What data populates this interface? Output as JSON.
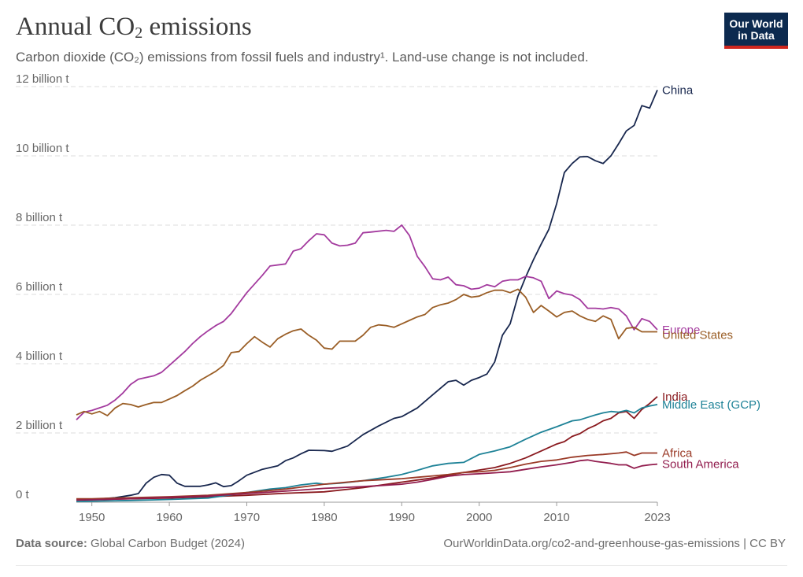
{
  "header": {
    "title_main": "Annual CO",
    "title_sub": "2",
    "title_end": " emissions",
    "subtitle": "Carbon dioxide (CO₂) emissions from fossil fuels and industry¹. Land-use change is not included."
  },
  "logo": {
    "line1": "Our World",
    "line2": "in Data",
    "bg_color": "#0c2a4f",
    "accent_color": "#ce261e"
  },
  "footer": {
    "source_label": "Data source:",
    "source_value": " Global Carbon Budget (2024)",
    "link_text": "OurWorldinData.org/co2-and-greenhouse-gas-emissions | CC BY"
  },
  "chart_data": {
    "type": "line",
    "ylim": [
      0,
      12
    ],
    "xlim": [
      1948,
      2023
    ],
    "y_ticks": [
      {
        "value": 0,
        "label": "0 t"
      },
      {
        "value": 2,
        "label": "2 billion t"
      },
      {
        "value": 4,
        "label": "4 billion t"
      },
      {
        "value": 6,
        "label": "6 billion t"
      },
      {
        "value": 8,
        "label": "8 billion t"
      },
      {
        "value": 10,
        "label": "10 billion t"
      },
      {
        "value": 12,
        "label": "12 billion t"
      }
    ],
    "x_ticks": [
      {
        "value": 1950,
        "label": "1950"
      },
      {
        "value": 1960,
        "label": "1960"
      },
      {
        "value": 1970,
        "label": "1970"
      },
      {
        "value": 1980,
        "label": "1980"
      },
      {
        "value": 1990,
        "label": "1990"
      },
      {
        "value": 2000,
        "label": "2000"
      },
      {
        "value": 2010,
        "label": "2010"
      },
      {
        "value": 2023,
        "label": "2023"
      }
    ],
    "grid": true,
    "series": [
      {
        "name": "China",
        "color": "#18274e",
        "x": [
          1948,
          1950,
          1953,
          1955,
          1956,
          1957,
          1958,
          1959,
          1960,
          1961,
          1962,
          1963,
          1964,
          1965,
          1966,
          1967,
          1968,
          1969,
          1970,
          1972,
          1974,
          1975,
          1976,
          1977,
          1978,
          1980,
          1981,
          1983,
          1985,
          1987,
          1989,
          1990,
          1992,
          1994,
          1996,
          1997,
          1998,
          1999,
          2000,
          2001,
          2002,
          2003,
          2004,
          2005,
          2006,
          2007,
          2008,
          2009,
          2010,
          2011,
          2012,
          2013,
          2014,
          2015,
          2016,
          2017,
          2018,
          2019,
          2020,
          2021,
          2022,
          2023
        ],
        "y": [
          0.06,
          0.08,
          0.13,
          0.2,
          0.25,
          0.55,
          0.72,
          0.8,
          0.78,
          0.55,
          0.46,
          0.46,
          0.46,
          0.5,
          0.56,
          0.45,
          0.48,
          0.62,
          0.78,
          0.95,
          1.05,
          1.2,
          1.28,
          1.4,
          1.5,
          1.49,
          1.47,
          1.62,
          1.95,
          2.2,
          2.42,
          2.47,
          2.72,
          3.1,
          3.48,
          3.52,
          3.38,
          3.52,
          3.6,
          3.7,
          4.05,
          4.82,
          5.15,
          5.95,
          6.5,
          7.0,
          7.45,
          7.88,
          8.62,
          9.52,
          9.78,
          9.97,
          9.98,
          9.86,
          9.78,
          10.0,
          10.35,
          10.72,
          10.88,
          11.45,
          11.38,
          11.9
        ],
        "label_value": 11.9,
        "label_offset": 0
      },
      {
        "name": "Europe",
        "color": "#a33a9e",
        "x": [
          1948,
          1949,
          1950,
          1952,
          1953,
          1954,
          1955,
          1956,
          1958,
          1959,
          1960,
          1961,
          1962,
          1963,
          1964,
          1965,
          1966,
          1967,
          1968,
          1969,
          1970,
          1972,
          1973,
          1975,
          1976,
          1977,
          1978,
          1979,
          1980,
          1981,
          1982,
          1983,
          1984,
          1985,
          1986,
          1988,
          1989,
          1990,
          1991,
          1992,
          1993,
          1994,
          1995,
          1996,
          1997,
          1998,
          1999,
          2000,
          2001,
          2002,
          2003,
          2004,
          2005,
          2006,
          2007,
          2008,
          2009,
          2010,
          2011,
          2012,
          2013,
          2014,
          2015,
          2016,
          2017,
          2018,
          2019,
          2020,
          2021,
          2022,
          2023
        ],
        "y": [
          2.38,
          2.6,
          2.65,
          2.8,
          2.95,
          3.15,
          3.4,
          3.55,
          3.65,
          3.75,
          3.95,
          4.15,
          4.35,
          4.58,
          4.78,
          4.95,
          5.1,
          5.22,
          5.45,
          5.75,
          6.05,
          6.55,
          6.82,
          6.88,
          7.25,
          7.32,
          7.55,
          7.75,
          7.72,
          7.48,
          7.4,
          7.42,
          7.48,
          7.78,
          7.8,
          7.85,
          7.82,
          8.0,
          7.7,
          7.1,
          6.8,
          6.45,
          6.42,
          6.5,
          6.28,
          6.25,
          6.15,
          6.18,
          6.28,
          6.22,
          6.38,
          6.42,
          6.42,
          6.52,
          6.48,
          6.38,
          5.88,
          6.1,
          6.02,
          5.98,
          5.85,
          5.6,
          5.6,
          5.58,
          5.62,
          5.58,
          5.38,
          4.98,
          5.3,
          5.22,
          4.98
        ],
        "label_value": 4.98,
        "label_offset": 0
      },
      {
        "name": "United States",
        "color": "#9a5e26",
        "x": [
          1948,
          1949,
          1950,
          1951,
          1952,
          1953,
          1954,
          1955,
          1956,
          1957,
          1958,
          1959,
          1960,
          1961,
          1962,
          1963,
          1964,
          1965,
          1966,
          1967,
          1968,
          1969,
          1970,
          1971,
          1972,
          1973,
          1974,
          1975,
          1976,
          1977,
          1978,
          1979,
          1980,
          1981,
          1982,
          1983,
          1984,
          1985,
          1986,
          1987,
          1988,
          1989,
          1990,
          1991,
          1992,
          1993,
          1994,
          1995,
          1996,
          1997,
          1998,
          1999,
          2000,
          2001,
          2002,
          2003,
          2004,
          2005,
          2006,
          2007,
          2008,
          2009,
          2010,
          2011,
          2012,
          2013,
          2014,
          2015,
          2016,
          2017,
          2018,
          2019,
          2020,
          2021,
          2022,
          2023
        ],
        "y": [
          2.52,
          2.62,
          2.55,
          2.62,
          2.5,
          2.72,
          2.85,
          2.82,
          2.75,
          2.82,
          2.88,
          2.88,
          2.98,
          3.08,
          3.22,
          3.35,
          3.52,
          3.65,
          3.78,
          3.95,
          4.32,
          4.35,
          4.58,
          4.78,
          4.62,
          4.48,
          4.72,
          4.85,
          4.95,
          5.0,
          4.82,
          4.68,
          4.45,
          4.42,
          4.65,
          4.65,
          4.65,
          4.82,
          5.05,
          5.12,
          5.1,
          5.05,
          5.15,
          5.25,
          5.35,
          5.42,
          5.62,
          5.7,
          5.75,
          5.85,
          6.0,
          5.92,
          5.95,
          6.05,
          6.12,
          6.12,
          6.05,
          6.15,
          5.92,
          5.48,
          5.68,
          5.52,
          5.35,
          5.48,
          5.52,
          5.38,
          5.28,
          5.22,
          5.38,
          5.28,
          4.72,
          5.02,
          5.05,
          4.92,
          4.92,
          4.92
        ],
        "label_value": 4.92,
        "label_offset": 4
      },
      {
        "name": "India",
        "color": "#8a1a1f",
        "x": [
          1948,
          1950,
          1955,
          1960,
          1965,
          1970,
          1975,
          1980,
          1985,
          1990,
          1992,
          1994,
          1996,
          1998,
          2000,
          2002,
          2004,
          2006,
          2008,
          2010,
          2011,
          2012,
          2013,
          2014,
          2015,
          2016,
          2017,
          2018,
          2019,
          2020,
          2021,
          2022,
          2023
        ],
        "y": [
          0.07,
          0.07,
          0.1,
          0.12,
          0.16,
          0.2,
          0.26,
          0.3,
          0.42,
          0.58,
          0.64,
          0.7,
          0.78,
          0.86,
          0.93,
          1.0,
          1.12,
          1.28,
          1.48,
          1.68,
          1.75,
          1.9,
          1.98,
          2.12,
          2.22,
          2.35,
          2.42,
          2.58,
          2.62,
          2.42,
          2.68,
          2.85,
          3.05
        ],
        "label_value": 3.05,
        "label_offset": 0
      },
      {
        "name": "Middle East (GCP)",
        "color": "#1e8297",
        "x": [
          1948,
          1950,
          1955,
          1960,
          1965,
          1970,
          1973,
          1975,
          1977,
          1979,
          1980,
          1982,
          1985,
          1988,
          1990,
          1992,
          1994,
          1996,
          1998,
          2000,
          2002,
          2004,
          2006,
          2008,
          2010,
          2012,
          2013,
          2014,
          2015,
          2016,
          2017,
          2018,
          2019,
          2020,
          2021,
          2022,
          2023
        ],
        "y": [
          0.02,
          0.03,
          0.05,
          0.08,
          0.12,
          0.28,
          0.38,
          0.42,
          0.5,
          0.55,
          0.52,
          0.55,
          0.62,
          0.72,
          0.8,
          0.92,
          1.05,
          1.12,
          1.15,
          1.38,
          1.48,
          1.6,
          1.82,
          2.02,
          2.18,
          2.35,
          2.38,
          2.45,
          2.52,
          2.58,
          2.62,
          2.6,
          2.65,
          2.58,
          2.72,
          2.78,
          2.82
        ],
        "label_value": 2.82,
        "label_offset": 0
      },
      {
        "name": "Africa",
        "color": "#9a3a27",
        "x": [
          1948,
          1950,
          1955,
          1960,
          1965,
          1970,
          1975,
          1980,
          1985,
          1990,
          1992,
          1994,
          1996,
          1998,
          2000,
          2002,
          2004,
          2006,
          2008,
          2010,
          2012,
          2014,
          2016,
          2018,
          2019,
          2020,
          2021,
          2022,
          2023
        ],
        "y": [
          0.1,
          0.1,
          0.13,
          0.16,
          0.2,
          0.28,
          0.38,
          0.52,
          0.62,
          0.68,
          0.72,
          0.76,
          0.8,
          0.86,
          0.88,
          0.92,
          1.0,
          1.1,
          1.18,
          1.22,
          1.3,
          1.35,
          1.38,
          1.42,
          1.45,
          1.35,
          1.42,
          1.42,
          1.42
        ],
        "label_value": 1.42,
        "label_offset": 0
      },
      {
        "name": "South America",
        "color": "#921d4e",
        "x": [
          1948,
          1950,
          1955,
          1960,
          1965,
          1970,
          1975,
          1980,
          1985,
          1990,
          1992,
          1994,
          1996,
          1998,
          2000,
          2002,
          2004,
          2006,
          2008,
          2010,
          2012,
          2013,
          2014,
          2015,
          2016,
          2017,
          2018,
          2019,
          2020,
          2021,
          2022,
          2023
        ],
        "y": [
          0.06,
          0.07,
          0.1,
          0.14,
          0.18,
          0.25,
          0.32,
          0.4,
          0.45,
          0.52,
          0.58,
          0.66,
          0.75,
          0.8,
          0.82,
          0.85,
          0.88,
          0.95,
          1.02,
          1.08,
          1.15,
          1.2,
          1.22,
          1.18,
          1.15,
          1.12,
          1.08,
          1.08,
          0.98,
          1.05,
          1.08,
          1.1
        ],
        "label_value": 1.1,
        "label_offset": 0
      }
    ]
  }
}
